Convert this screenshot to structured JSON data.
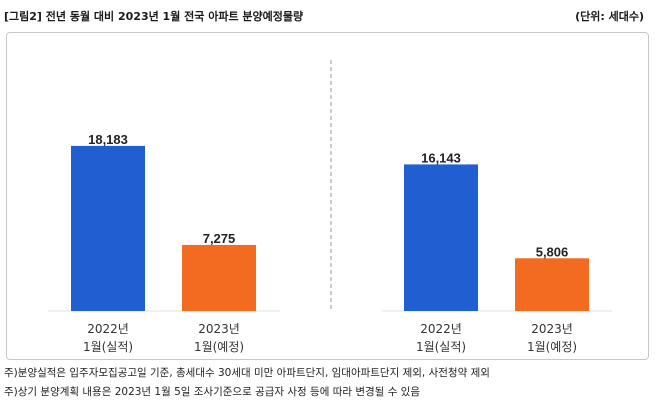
{
  "title": "[그림2] 전년 동월 대비 2023년 1월 전국 아파트 분양예정물량",
  "unit": "(단위: 세대수)",
  "notes": [
    "주)분양실적은 입주자모집공고일 기준, 총세대수 30세대 미만 아파트단지, 임대아파트단지 제외, 사전청약 제외",
    "주)상기 분양계획 내용은 2023년 1월 5일 조사기준으로 공급자 사정 등에 따라 변경될 수 있음"
  ],
  "colors": {
    "actual": "#1f5fd1",
    "planned": "#f26b21"
  },
  "chart_data": [
    {
      "type": "bar",
      "categories": [
        "2022년 1월(실적)",
        "2023년 1월(예정)"
      ],
      "category_lines": [
        [
          "2022년",
          "1월(실적)"
        ],
        [
          "2023년",
          "1월(예정)"
        ]
      ],
      "values": [
        18183,
        7275
      ],
      "value_labels": [
        "18,183",
        "7,275"
      ],
      "ylim": [
        0,
        25000
      ]
    },
    {
      "type": "bar",
      "categories": [
        "2022년 1월(실적)",
        "2023년 1월(예정)"
      ],
      "category_lines": [
        [
          "2022년",
          "1월(실적)"
        ],
        [
          "2023년",
          "1월(예정)"
        ]
      ],
      "values": [
        16143,
        5806
      ],
      "value_labels": [
        "16,143",
        "5,806"
      ],
      "ylim": [
        0,
        25000
      ]
    }
  ]
}
